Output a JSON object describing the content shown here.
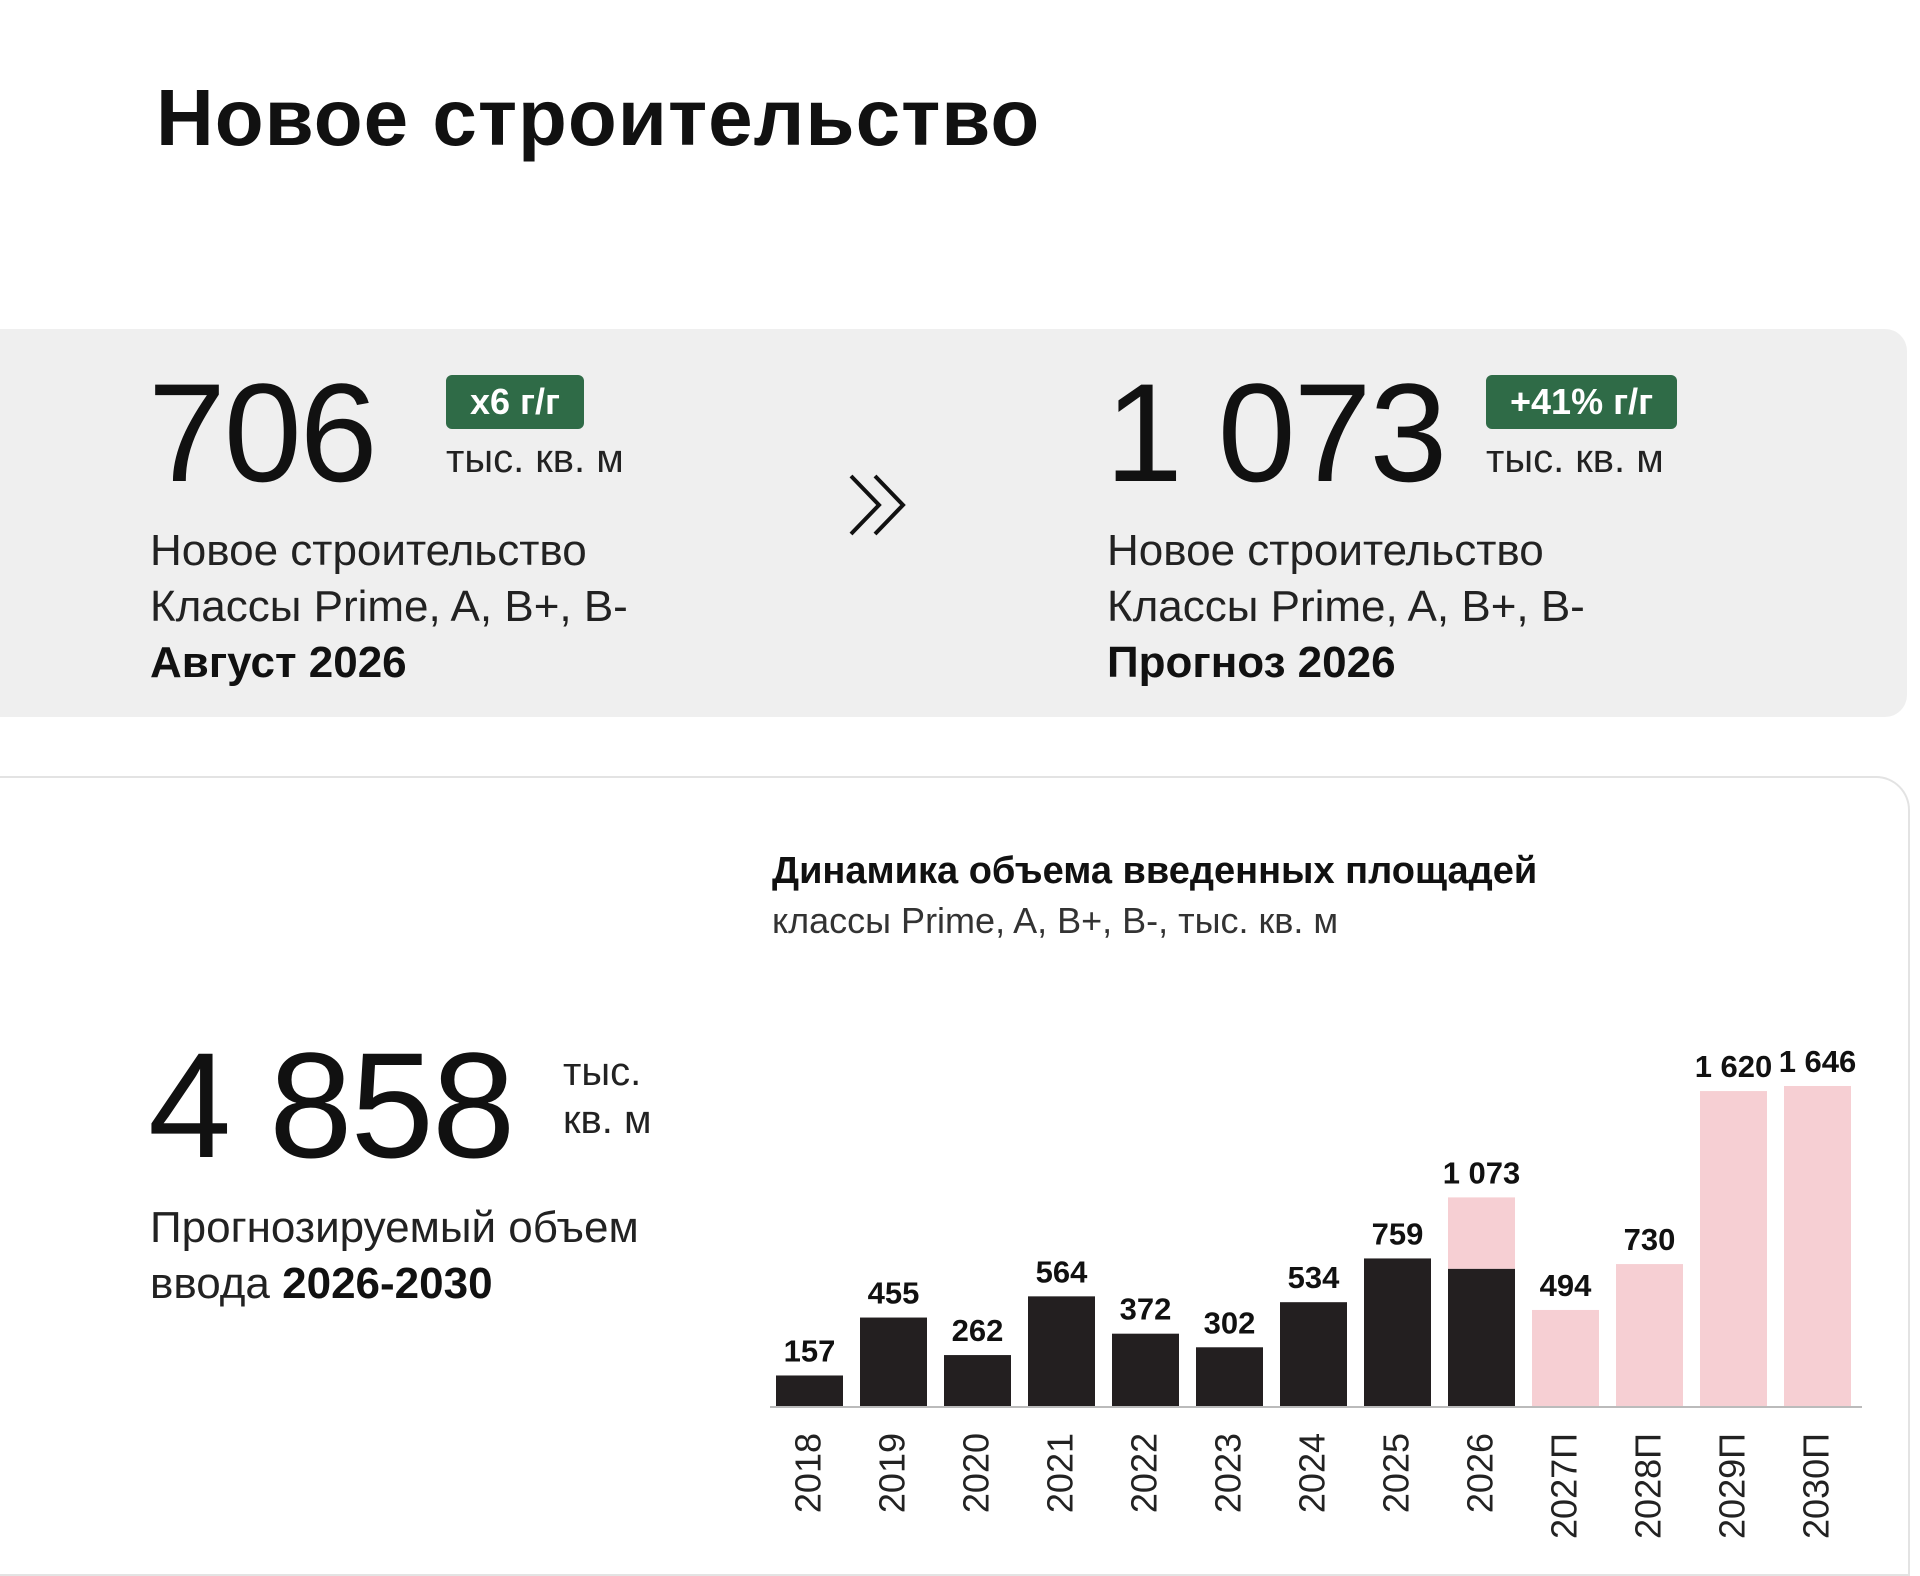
{
  "page": {
    "title": "Новое строительство"
  },
  "kpis": [
    {
      "value": "706",
      "badge": "x6 г/г",
      "unit": "тыс. кв. м",
      "line1": "Новое строительство",
      "line2": "Классы Prime, A, B+, B-",
      "period": "Август 2026"
    },
    {
      "value": "1 073",
      "badge": "+41% г/г",
      "unit": "тыс. кв. м",
      "line1": "Новое строительство",
      "line2": "Классы Prime, A, B+, B-",
      "period": "Прогноз 2026"
    }
  ],
  "arrow_icon": "double-chevron-right-icon",
  "forecast_total": {
    "value": "4 858",
    "unit_line1": "тыс.",
    "unit_line2": "кв. м",
    "desc_prefix": "Прогнозируемый объем",
    "desc_line2_prefix": "ввода ",
    "desc_strong": "2026-2030"
  },
  "colors": {
    "badge": "#2f6b47",
    "actual": "#231f20",
    "forecast": "#f6cfd3",
    "axis": "#bbbbbb"
  },
  "chart_data": {
    "type": "bar",
    "title": "Динамика объема введенных площадей",
    "subtitle": "классы Prime, A, B+, B-, тыс. кв. м",
    "categories": [
      "2018",
      "2019",
      "2020",
      "2021",
      "2022",
      "2023",
      "2024",
      "2025",
      "2026",
      "2027П",
      "2028П",
      "2029П",
      "2030П"
    ],
    "series": [
      {
        "key": "actual",
        "values": [
          157,
          455,
          262,
          564,
          372,
          302,
          534,
          759,
          706,
          null,
          null,
          null,
          null
        ]
      },
      {
        "key": "forecast",
        "values": [
          null,
          null,
          null,
          null,
          null,
          null,
          null,
          null,
          367,
          494,
          730,
          1620,
          1646
        ]
      }
    ],
    "data_labels": [
      "157",
      "455",
      "262",
      "564",
      "372",
      "302",
      "534",
      "759",
      "1 073",
      "494",
      "730",
      "1 620",
      "1 646"
    ],
    "totals": [
      157,
      455,
      262,
      564,
      372,
      302,
      534,
      759,
      1073,
      494,
      730,
      1620,
      1646
    ],
    "stacked": true,
    "xlabel": "",
    "ylabel": "",
    "ylim": [
      0,
      1700
    ],
    "grid": false,
    "legend": "none",
    "x_tick_rotation": -90
  }
}
